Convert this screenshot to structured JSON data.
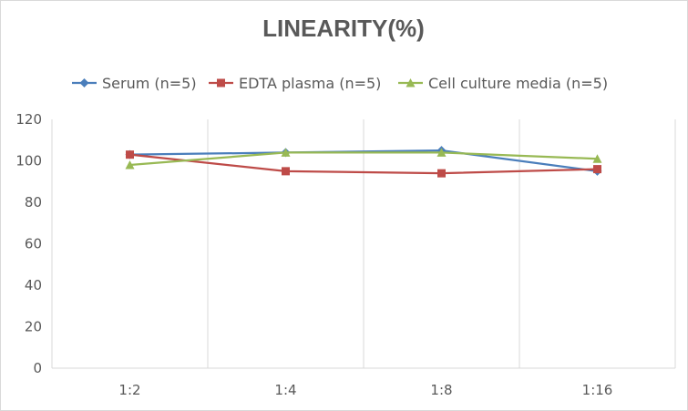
{
  "chart_data": {
    "type": "line",
    "title": "LINEARITY(%)",
    "xlabel": "",
    "ylabel": "",
    "categories": [
      "1:2",
      "1:4",
      "1:8",
      "1:16"
    ],
    "ylim": [
      0,
      120
    ],
    "yticks": [
      0,
      20,
      40,
      60,
      80,
      100,
      120
    ],
    "grid": "vertical",
    "legend_position": "top",
    "series": [
      {
        "name": "Serum (n=5)",
        "values": [
          103,
          104,
          105,
          95
        ],
        "color": "#4a7ebb",
        "marker": "diamond"
      },
      {
        "name": "EDTA plasma (n=5)",
        "values": [
          103,
          95,
          94,
          96
        ],
        "color": "#be4b48",
        "marker": "square"
      },
      {
        "name": "Cell culture media (n=5)",
        "values": [
          98,
          104,
          104,
          101
        ],
        "color": "#98b954",
        "marker": "triangle"
      }
    ]
  }
}
